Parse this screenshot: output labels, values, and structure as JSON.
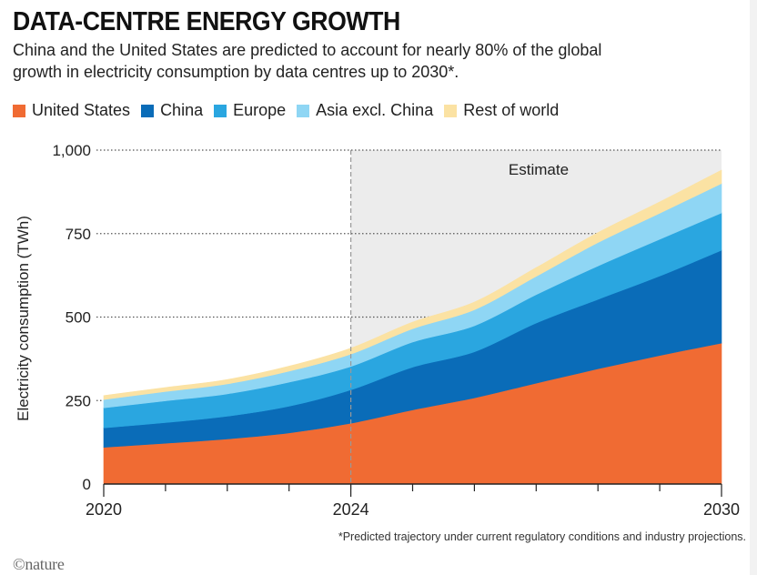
{
  "header": {
    "title": "DATA-CENTRE ENERGY GROWTH",
    "subtitle": "China and the United States are predicted to account for nearly 80% of the global growth in electricity consumption by data centres up to 2030*."
  },
  "footer": {
    "footnote": "*Predicted trajectory under current regulatory conditions and industry projections.",
    "logo": "©nature"
  },
  "colors": {
    "United States": "#f06b33",
    "China": "#0a6cb8",
    "Europe": "#2aa6e0",
    "Asia excl. China": "#8fd6f4",
    "Rest of world": "#fbe2a3",
    "estimate_shade": "#ececec"
  },
  "chart_data": {
    "type": "area",
    "stacked": true,
    "title": "DATA-CENTRE ENERGY GROWTH",
    "ylabel": "Electricity consumption (TWh)",
    "xlabel": "",
    "xlim": [
      2020,
      2030
    ],
    "ylim": [
      0,
      1000
    ],
    "x_ticks": [
      "2020",
      "2024",
      "2030"
    ],
    "y_ticks": [
      "0",
      "250",
      "500",
      "750",
      "1,000"
    ],
    "grid": "dotted horizontal",
    "legend_position": "top",
    "annotation": "Estimate",
    "estimate_start": 2024,
    "x": [
      2020,
      2021,
      2022,
      2023,
      2024,
      2025,
      2026,
      2027,
      2028,
      2029,
      2030
    ],
    "series": [
      {
        "name": "United States",
        "values": [
          110,
          122,
          135,
          153,
          182,
          222,
          258,
          302,
          345,
          385,
          422
        ]
      },
      {
        "name": "China",
        "values": [
          58,
          62,
          68,
          80,
          100,
          128,
          138,
          180,
          208,
          238,
          278
        ]
      },
      {
        "name": "Europe",
        "values": [
          60,
          65,
          67,
          72,
          70,
          75,
          78,
          85,
          100,
          110,
          112
        ]
      },
      {
        "name": "Asia excl. China",
        "values": [
          25,
          28,
          30,
          33,
          37,
          40,
          48,
          55,
          70,
          78,
          88
        ]
      },
      {
        "name": "Rest of world",
        "values": [
          12,
          12,
          13,
          15,
          18,
          20,
          23,
          26,
          30,
          34,
          40
        ]
      }
    ]
  }
}
